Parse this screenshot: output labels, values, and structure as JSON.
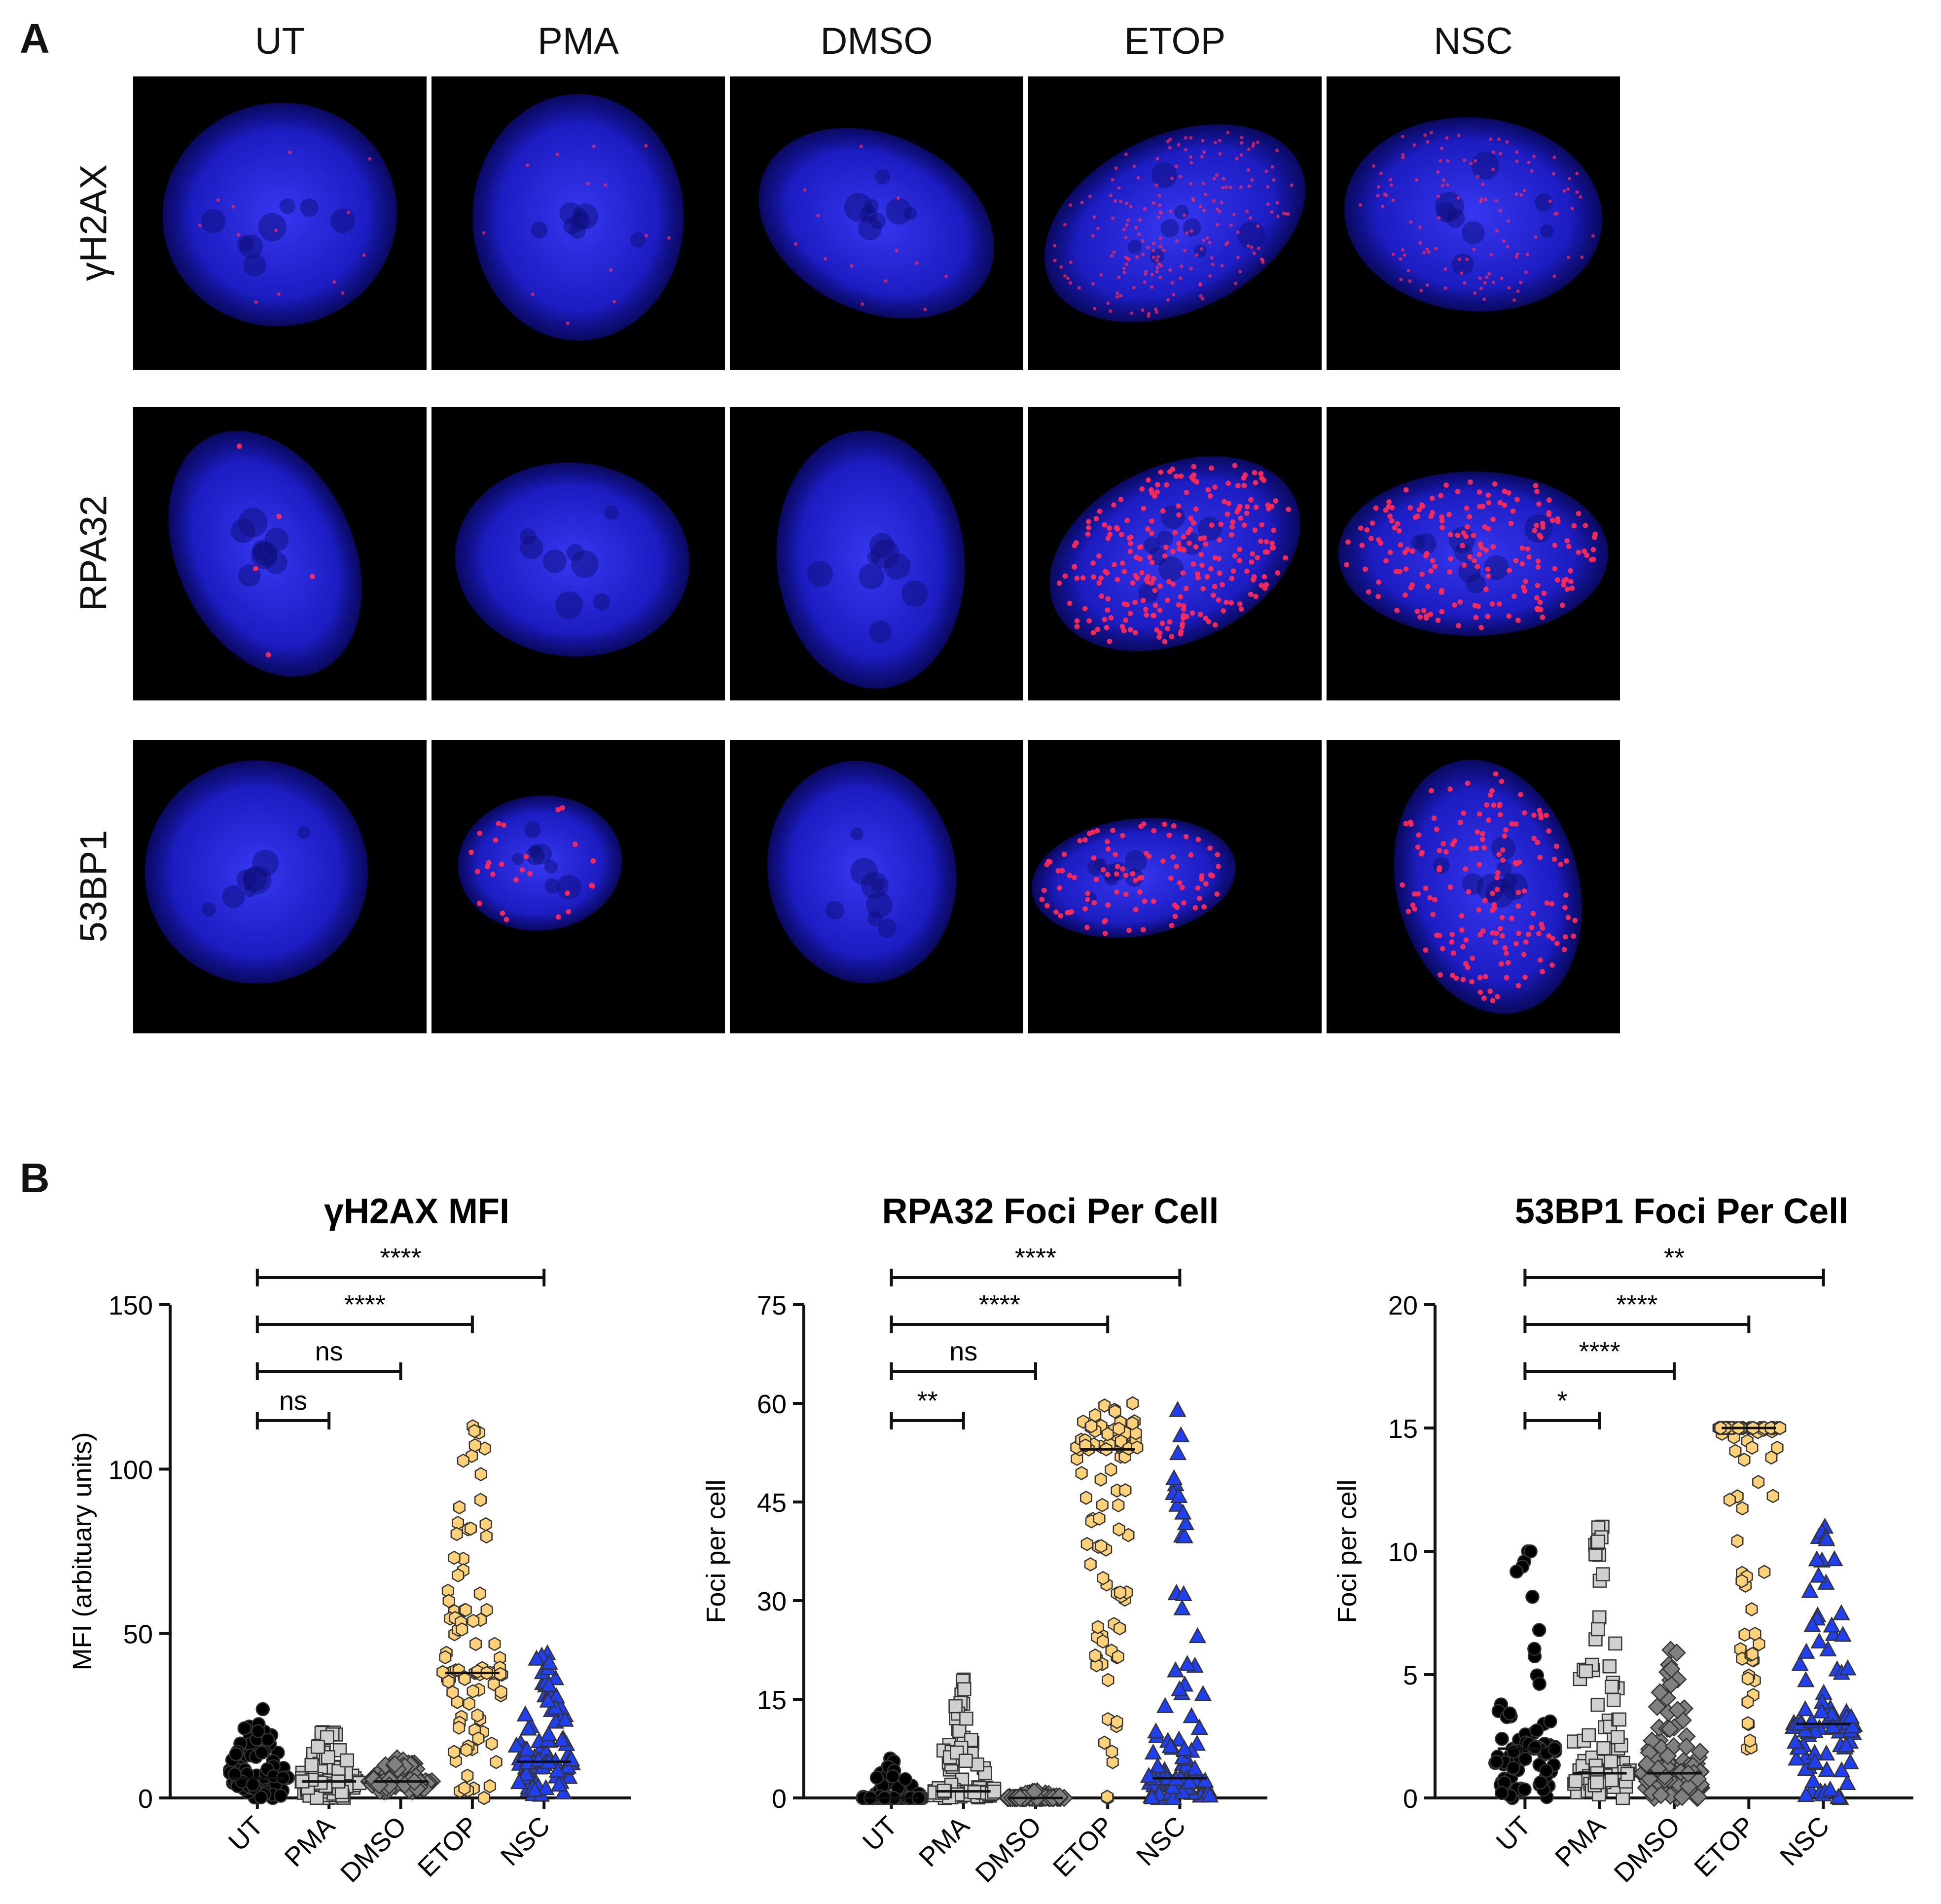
{
  "panels": {
    "a_label": "A",
    "b_label": "B"
  },
  "microscopy": {
    "columns": [
      "UT",
      "PMA",
      "DMSO",
      "ETOP",
      "NSC"
    ],
    "rows": [
      "γH2AX",
      "RPA32",
      "53BP1"
    ],
    "channel_colors": {
      "nucleus": "#2b2bff",
      "foci": "#ff2a55",
      "background": "#000000"
    },
    "foci_level": [
      [
        0.05,
        0.05,
        0.05,
        0.75,
        0.45
      ],
      [
        0.02,
        0.0,
        0.0,
        0.95,
        0.7
      ],
      [
        0.0,
        0.1,
        0.0,
        0.35,
        0.6
      ]
    ]
  },
  "chart_data": [
    {
      "type": "scatter",
      "title": "γH2AX MFI",
      "ylabel": "MFI (arbituary units)",
      "xlabel": "",
      "categories": [
        "UT",
        "PMA",
        "DMSO",
        "ETOP",
        "NSC"
      ],
      "ylim": [
        0,
        150
      ],
      "yticks": [
        0,
        50,
        100,
        150
      ],
      "series_colors": [
        "#000000",
        "#d0d0d0",
        "#808080",
        "#ffd27a",
        "#1f3ff0"
      ],
      "markers": [
        "circle",
        "square",
        "diamond",
        "hexagon",
        "triangle"
      ],
      "medians": [
        6,
        5,
        5,
        38,
        11
      ],
      "distributions": [
        {
          "min": 0,
          "max": 27,
          "median": 6
        },
        {
          "min": 0,
          "max": 20,
          "median": 5
        },
        {
          "min": 2,
          "max": 12,
          "median": 5
        },
        {
          "min": 0,
          "max": 113,
          "median": 38
        },
        {
          "min": 1,
          "max": 44,
          "median": 11
        }
      ],
      "significance": [
        {
          "from": "UT",
          "to": "PMA",
          "label": "ns"
        },
        {
          "from": "UT",
          "to": "DMSO",
          "label": "ns"
        },
        {
          "from": "UT",
          "to": "ETOP",
          "label": "****"
        },
        {
          "from": "UT",
          "to": "NSC",
          "label": "****"
        }
      ]
    },
    {
      "type": "scatter",
      "title": "RPA32 Foci Per Cell",
      "ylabel": "Foci per cell",
      "xlabel": "",
      "categories": [
        "UT",
        "PMA",
        "DMSO",
        "ETOP",
        "NSC"
      ],
      "ylim": [
        0,
        75
      ],
      "yticks": [
        0,
        15,
        30,
        45,
        60,
        75
      ],
      "series_colors": [
        "#000000",
        "#d0d0d0",
        "#808080",
        "#ffd27a",
        "#1f3ff0"
      ],
      "markers": [
        "circle",
        "square",
        "diamond",
        "hexagon",
        "triangle"
      ],
      "medians": [
        0,
        1,
        0,
        53,
        3
      ],
      "distributions": [
        {
          "min": 0,
          "max": 6,
          "median": 0
        },
        {
          "min": 0,
          "max": 18,
          "median": 1
        },
        {
          "min": 0,
          "max": 1,
          "median": 0
        },
        {
          "min": 0,
          "max": 60,
          "median": 53
        },
        {
          "min": 0,
          "max": 59,
          "median": 3
        }
      ],
      "significance": [
        {
          "from": "UT",
          "to": "PMA",
          "label": "**"
        },
        {
          "from": "UT",
          "to": "DMSO",
          "label": "ns"
        },
        {
          "from": "UT",
          "to": "ETOP",
          "label": "****"
        },
        {
          "from": "UT",
          "to": "NSC",
          "label": "****"
        }
      ]
    },
    {
      "type": "scatter",
      "title": "53BP1 Foci Per Cell",
      "ylabel": "Foci per cell",
      "xlabel": "",
      "categories": [
        "UT",
        "PMA",
        "DMSO",
        "ETOP",
        "NSC"
      ],
      "ylim": [
        0,
        20
      ],
      "yticks": [
        0,
        5,
        10,
        15,
        20
      ],
      "series_colors": [
        "#000000",
        "#d0d0d0",
        "#808080",
        "#ffd27a",
        "#1f3ff0"
      ],
      "markers": [
        "circle",
        "square",
        "diamond",
        "hexagon",
        "triangle"
      ],
      "medians": [
        2,
        1,
        1,
        15,
        3
      ],
      "distributions": [
        {
          "min": 0,
          "max": 10,
          "median": 2
        },
        {
          "min": 0,
          "max": 11,
          "median": 1
        },
        {
          "min": 0,
          "max": 6,
          "median": 1
        },
        {
          "min": 2,
          "max": 15,
          "median": 15
        },
        {
          "min": 0,
          "max": 11,
          "median": 3
        }
      ],
      "significance": [
        {
          "from": "UT",
          "to": "PMA",
          "label": "*"
        },
        {
          "from": "UT",
          "to": "DMSO",
          "label": "****"
        },
        {
          "from": "UT",
          "to": "ETOP",
          "label": "****"
        },
        {
          "from": "UT",
          "to": "NSC",
          "label": "**"
        }
      ]
    }
  ]
}
